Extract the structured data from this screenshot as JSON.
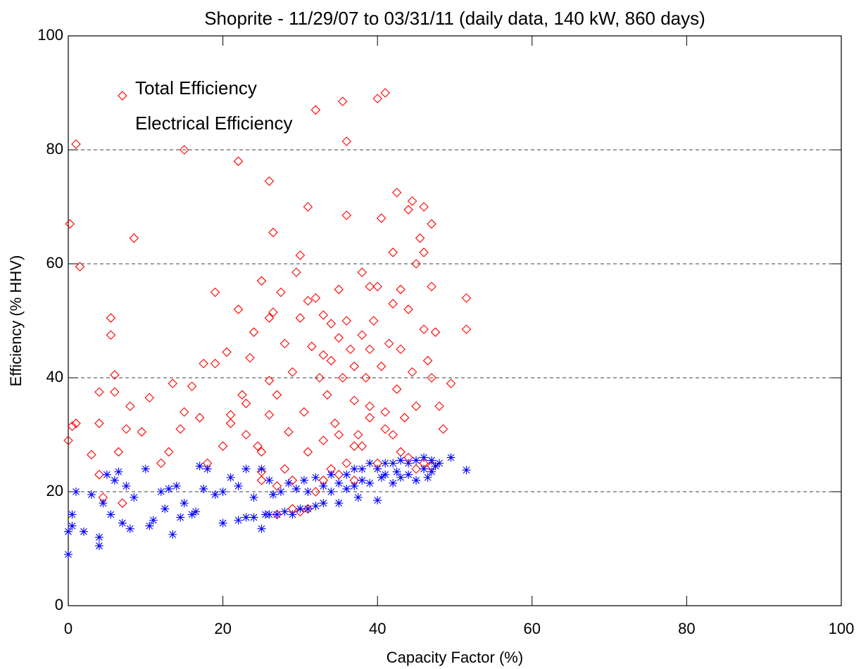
{
  "chart_data": {
    "type": "scatter",
    "title": "Shoprite - 11/29/07 to 03/31/11 (daily data, 140 kW, 860 days)",
    "x_label": "Capacity Factor (%)",
    "y_label": "Efficiency (% HHV)",
    "xlim": [
      0,
      100
    ],
    "ylim": [
      0,
      100
    ],
    "xticks": [
      0,
      20,
      40,
      60,
      80,
      100
    ],
    "yticks": [
      0,
      20,
      40,
      60,
      80,
      100
    ],
    "grid": true,
    "series": [
      {
        "name": "Total Efficiency",
        "color": "#ff0000",
        "marker": "diamond",
        "x": [
          0.2,
          1,
          0,
          0.5,
          1,
          1.5,
          3,
          4,
          4,
          4,
          4.5,
          5.5,
          5.5,
          6,
          6,
          6.5,
          7,
          7,
          7.5,
          8,
          8.5,
          9.5,
          10.5,
          12,
          13,
          13.5,
          14.5,
          15,
          15,
          16,
          17,
          17.5,
          18,
          19,
          19,
          20,
          20.5,
          21,
          21,
          22,
          22,
          22.5,
          23,
          23.5,
          23,
          24,
          24.5,
          25,
          25,
          26,
          26,
          26.5,
          26.5,
          26,
          26,
          27,
          27.5,
          28,
          28.5,
          29,
          29.5,
          30,
          30,
          30.5,
          31,
          31,
          31.5,
          32,
          32,
          32.5,
          33,
          33,
          33.5,
          34,
          34,
          34.5,
          35,
          35,
          35.5,
          35.5,
          36,
          36,
          36,
          36.5,
          37,
          37,
          37.5,
          38,
          38,
          38.5,
          39,
          39,
          39,
          39.5,
          40,
          40,
          40.5,
          40.5,
          41,
          41,
          41.5,
          42,
          42,
          42.5,
          42.5,
          43,
          43,
          43.5,
          44,
          44,
          44.5,
          44.5,
          45,
          45,
          45.5,
          46,
          46,
          46,
          46.5,
          47,
          47,
          47,
          47.5,
          48,
          48.5,
          49.5,
          51.5,
          51.5,
          25,
          27,
          28,
          29,
          30,
          31,
          32,
          33,
          34,
          35,
          36,
          37,
          38,
          40,
          42,
          44,
          46,
          47,
          45,
          43,
          41,
          39,
          37,
          35,
          33,
          31,
          29,
          27,
          25
        ],
        "values": [
          67,
          81,
          29,
          31.5,
          32,
          59.5,
          26.5,
          37.5,
          32,
          23,
          19,
          47.5,
          50.5,
          40.5,
          37.5,
          27,
          18,
          89.5,
          31,
          35,
          64.5,
          30.5,
          36.5,
          25,
          27,
          39,
          31,
          34,
          80,
          38.5,
          33,
          42.5,
          25,
          42.5,
          55,
          28,
          44.5,
          33.5,
          32,
          78,
          52,
          37,
          35.5,
          43.5,
          30,
          48,
          28,
          57,
          27,
          74.5,
          50.5,
          51.5,
          65.5,
          39.5,
          33.5,
          37,
          55,
          46,
          30.5,
          41,
          58.5,
          61.5,
          50.5,
          34,
          70,
          53.5,
          45.5,
          87,
          54,
          40,
          51,
          44,
          37,
          49.5,
          43,
          32,
          55.5,
          47,
          40,
          88.5,
          81.5,
          68.5,
          50,
          45,
          36,
          42,
          30,
          58.5,
          47.5,
          40,
          56,
          45,
          35,
          50,
          89,
          56,
          68,
          42,
          90,
          34,
          46,
          62,
          53,
          72.5,
          38,
          55.5,
          45,
          33,
          69.5,
          52,
          71,
          41,
          60,
          35,
          64.5,
          70,
          62,
          48.5,
          43,
          67,
          56,
          40,
          48,
          35,
          31,
          39,
          54,
          48.5,
          22,
          21,
          24,
          17,
          16.5,
          17,
          20,
          22,
          24,
          23,
          25,
          22,
          28,
          25,
          30,
          26,
          25,
          24.5,
          24,
          27,
          31,
          33,
          28,
          30,
          29,
          27,
          22,
          16,
          23.5
        ]
      },
      {
        "name": "Electrical Efficiency",
        "color": "#0000ff",
        "marker": "asterisk",
        "x": [
          0,
          0,
          0.5,
          0.5,
          1,
          2,
          3,
          4,
          4,
          4.5,
          5,
          5.5,
          6,
          6.5,
          7,
          7.5,
          8,
          8.5,
          10,
          10.5,
          11,
          12,
          12.5,
          13,
          13.5,
          14,
          14.5,
          15,
          16,
          16.5,
          17,
          17.5,
          18,
          19,
          20,
          20,
          21,
          22,
          22,
          23,
          23,
          24,
          24,
          25,
          25,
          25.5,
          26,
          26,
          26.5,
          27,
          27.5,
          28,
          28.5,
          29,
          29.5,
          30,
          30.5,
          31,
          31,
          32,
          32,
          33,
          33,
          34,
          34,
          35,
          35,
          36,
          36,
          37,
          37,
          37.5,
          38,
          38,
          39,
          39,
          40,
          40,
          40.5,
          41,
          41,
          42,
          42,
          42.5,
          43,
          43,
          44,
          44,
          45,
          45,
          46,
          46,
          46.5,
          47,
          47,
          47.5,
          48,
          49.5,
          51.5
        ],
        "values": [
          9,
          13,
          16,
          14,
          20,
          13,
          19.5,
          12,
          10.5,
          18,
          23,
          16,
          22,
          23.5,
          14.5,
          21,
          13.5,
          19,
          24,
          14,
          15,
          20,
          17,
          20.5,
          12.5,
          21,
          15.5,
          18,
          16,
          16.5,
          24.5,
          20.5,
          24,
          19.5,
          14.5,
          20,
          22.5,
          15,
          21,
          15.5,
          24,
          19,
          15.5,
          13.5,
          24,
          16,
          22,
          16,
          19.5,
          16,
          20,
          16.5,
          21.5,
          16,
          20.5,
          17,
          22,
          20,
          17,
          22.5,
          17.5,
          21,
          18,
          23,
          20,
          21.5,
          18,
          23,
          20.5,
          24,
          21,
          19,
          24,
          22,
          25,
          21.5,
          24,
          18.5,
          22.5,
          25,
          23,
          25,
          21.5,
          23.5,
          25.5,
          22.5,
          25,
          23,
          25.5,
          22,
          26,
          24,
          22.5,
          25.5,
          23.5,
          24.5,
          25,
          26,
          23.8
        ]
      }
    ]
  }
}
